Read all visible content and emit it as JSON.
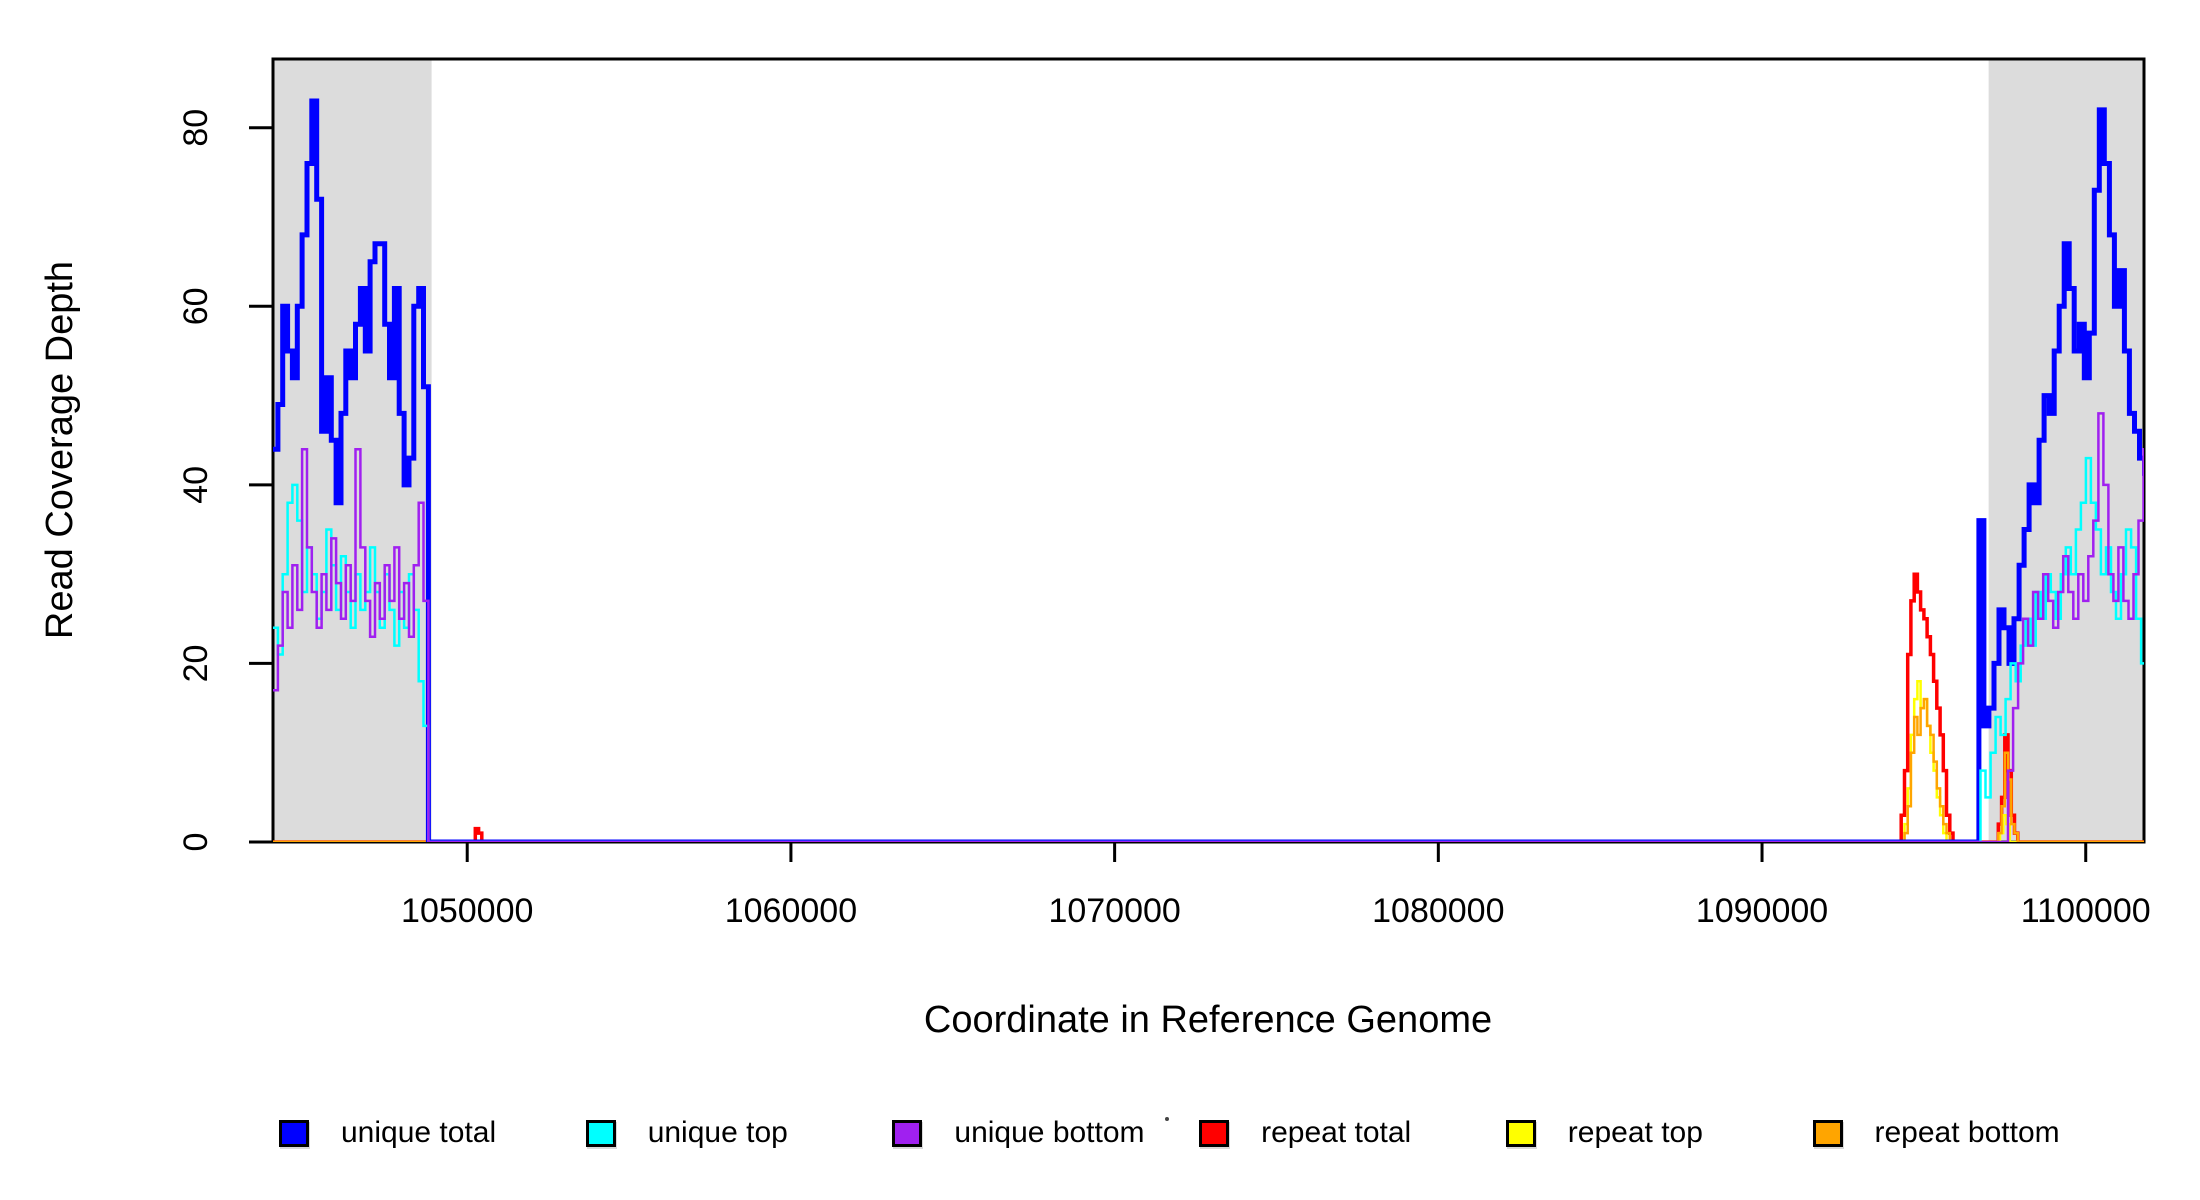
{
  "chart_data": {
    "type": "line",
    "subtype": "step-coverage",
    "title": "",
    "xlabel": "Coordinate in Reference Genome",
    "ylabel": "Read Coverage Depth",
    "xlim": [
      1044000,
      1101800
    ],
    "ylim": [
      0,
      87.7
    ],
    "x_ticks": [
      1050000,
      1060000,
      1070000,
      1080000,
      1090000,
      1100000
    ],
    "y_ticks": [
      0,
      20,
      40,
      60,
      80
    ],
    "grid": false,
    "legend_position": "bottom",
    "background_color": "#ffffff",
    "band_color": "#dcdcdc",
    "highlight_bands": [
      {
        "x0": 1044000,
        "x1": 1048900
      },
      {
        "x0": 1097000,
        "x1": 1101800
      }
    ],
    "legend": [
      {
        "label": "unique total",
        "color": "#0000ff"
      },
      {
        "label": "unique top",
        "color": "#00ffff"
      },
      {
        "label": "unique bottom",
        "color": "#a020f0"
      },
      {
        "label": "repeat total",
        "color": "#ff0000"
      },
      {
        "label": "repeat top",
        "color": "#ffff00"
      },
      {
        "label": "repeat bottom",
        "color": "#ffa500"
      }
    ],
    "series": [
      {
        "name": "repeat total",
        "color": "#ff0000",
        "lwd": 3.5,
        "segments": [
          {
            "start": 1050250,
            "bin": 100,
            "values": [
              1.5,
              1
            ]
          },
          {
            "start": 1094300,
            "bin": 100,
            "values": [
              3,
              8,
              21,
              27,
              30,
              28,
              26,
              25,
              23,
              21,
              18,
              15,
              12,
              8,
              3,
              1
            ]
          },
          {
            "start": 1097300,
            "bin": 100,
            "values": [
              2,
              5,
              12,
              8,
              3,
              1
            ]
          }
        ]
      },
      {
        "name": "repeat top",
        "color": "#ffff00",
        "lwd": 2.5,
        "segments": [
          {
            "start": 1094400,
            "bin": 100,
            "values": [
              2,
              6,
              12,
              16,
              18,
              15,
              16,
              13,
              10,
              8,
              5,
              3,
              1
            ]
          },
          {
            "start": 1097350,
            "bin": 100,
            "values": [
              1,
              3,
              2
            ]
          }
        ]
      },
      {
        "name": "repeat bottom",
        "color": "#ffa500",
        "lwd": 2.5,
        "segments": [
          {
            "start": 1094400,
            "bin": 100,
            "values": [
              1,
              4,
              10,
              14,
              12,
              15,
              16,
              13,
              12,
              9,
              6,
              4,
              2,
              1
            ]
          },
          {
            "start": 1097300,
            "bin": 100,
            "values": [
              1,
              4,
              10,
              7,
              2,
              1
            ]
          }
        ]
      },
      {
        "name": "unique total",
        "color": "#0000ff",
        "lwd": 5,
        "segments": [
          {
            "start": 1044000,
            "bin": 150,
            "values": [
              44,
              49,
              60,
              55,
              52,
              60,
              68,
              76,
              83,
              72,
              46,
              52,
              45,
              38,
              48,
              55,
              52,
              58,
              62,
              55,
              65,
              67,
              67,
              58,
              52,
              62,
              48,
              40,
              43,
              60,
              62,
              51
            ]
          },
          {
            "start": 1096700,
            "bin": 155,
            "values": [
              36,
              13,
              15,
              20,
              26,
              24,
              20,
              25,
              31,
              35,
              40,
              38,
              45,
              50,
              48,
              55,
              60,
              67,
              62,
              55,
              58,
              52,
              57,
              73,
              82,
              76,
              68,
              60,
              64,
              55,
              48,
              46,
              43,
              41
            ]
          }
        ]
      },
      {
        "name": "unique top",
        "color": "#00ffff",
        "lwd": 2.5,
        "segments": [
          {
            "start": 1044000,
            "bin": 150,
            "values": [
              24,
              21,
              30,
              38,
              40,
              36,
              28,
              33,
              30,
              25,
              28,
              35,
              31,
              26,
              32,
              28,
              24,
              30,
              26,
              28,
              33,
              28,
              24,
              30,
              26,
              22,
              28,
              24,
              30,
              26,
              18,
              13
            ]
          },
          {
            "start": 1096750,
            "bin": 155,
            "values": [
              8,
              5,
              10,
              14,
              12,
              16,
              20,
              18,
              22,
              25,
              22,
              28,
              25,
              30,
              28,
              25,
              30,
              33,
              30,
              35,
              38,
              43,
              38,
              35,
              30,
              33,
              28,
              25,
              30,
              35,
              33,
              25,
              20,
              15
            ]
          }
        ]
      },
      {
        "name": "unique bottom",
        "color": "#a020f0",
        "lwd": 2.5,
        "segments": [
          {
            "start": 1044000,
            "bin": 150,
            "values": [
              17,
              22,
              28,
              24,
              31,
              26,
              44,
              33,
              28,
              24,
              30,
              26,
              34,
              29,
              25,
              31,
              27,
              44,
              33,
              27,
              23,
              29,
              25,
              31,
              27,
              33,
              25,
              29,
              23,
              31,
              38,
              27
            ]
          },
          {
            "start": 1097600,
            "bin": 155,
            "values": [
              8,
              15,
              20,
              25,
              22,
              28,
              25,
              30,
              27,
              24,
              28,
              32,
              28,
              25,
              30,
              27,
              32,
              36,
              48,
              40,
              30,
              27,
              33,
              27,
              25,
              30,
              36,
              44,
              37
            ]
          }
        ]
      }
    ]
  }
}
